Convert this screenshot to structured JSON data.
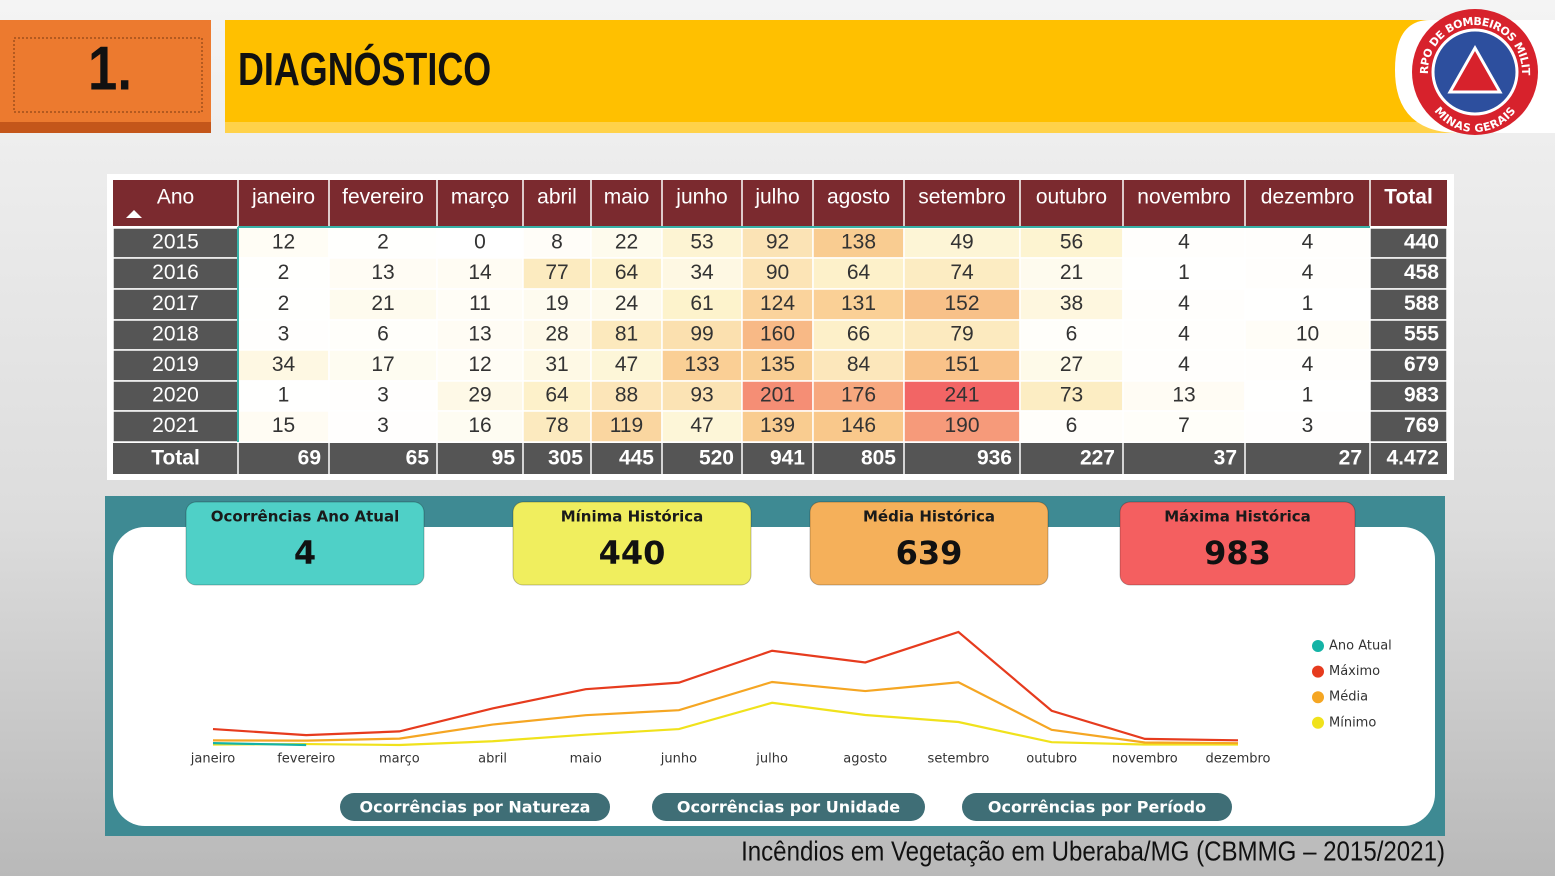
{
  "header": {
    "number": "1.",
    "title": "DIAGNÓSTICO"
  },
  "logo": {
    "ring_top": "CORPO DE BOMBEIROS MILITAR",
    "ring_bottom": "MINAS GERAIS"
  },
  "table": {
    "columns": [
      "Ano",
      "janeiro",
      "fevereiro",
      "março",
      "abril",
      "maio",
      "junho",
      "julho",
      "agosto",
      "setembro",
      "outubro",
      "novembro",
      "dezembro",
      "Total"
    ],
    "rows": [
      [
        "2015",
        12,
        2,
        0,
        8,
        22,
        53,
        92,
        138,
        49,
        56,
        4,
        4,
        440
      ],
      [
        "2016",
        2,
        13,
        14,
        77,
        64,
        34,
        90,
        64,
        74,
        21,
        1,
        4,
        458
      ],
      [
        "2017",
        2,
        21,
        11,
        19,
        24,
        61,
        124,
        131,
        152,
        38,
        4,
        1,
        588
      ],
      [
        "2018",
        3,
        6,
        13,
        28,
        81,
        99,
        160,
        66,
        79,
        6,
        4,
        10,
        555
      ],
      [
        "2019",
        34,
        17,
        12,
        31,
        47,
        133,
        135,
        84,
        151,
        27,
        4,
        4,
        679
      ],
      [
        "2020",
        1,
        3,
        29,
        64,
        88,
        93,
        201,
        176,
        241,
        73,
        13,
        1,
        983
      ],
      [
        "2021",
        15,
        3,
        16,
        78,
        119,
        47,
        139,
        146,
        190,
        6,
        7,
        3,
        769
      ]
    ],
    "total": [
      "Total",
      69,
      65,
      95,
      305,
      445,
      520,
      941,
      805,
      936,
      227,
      37,
      27,
      "4.472"
    ]
  },
  "kpis": [
    {
      "label": "Ocorrências Ano Atual",
      "value": 4,
      "color": "#4fd0c7"
    },
    {
      "label": "Mínima Histórica",
      "value": 440,
      "color": "#f0ee5e"
    },
    {
      "label": "Média Histórica",
      "value": 639,
      "color": "#f5b05a"
    },
    {
      "label": "Máxima Histórica",
      "value": 983,
      "color": "#f45f60"
    }
  ],
  "chart_data": {
    "type": "line",
    "categories": [
      "janeiro",
      "fevereiro",
      "março",
      "abril",
      "maio",
      "junho",
      "julho",
      "agosto",
      "setembro",
      "outubro",
      "novembro",
      "dezembro"
    ],
    "series": [
      {
        "name": "Ano Atual",
        "color": "#14b3a6",
        "values": [
          4,
          0,
          null,
          null,
          null,
          null,
          null,
          null,
          null,
          null,
          null,
          null
        ]
      },
      {
        "name": "Máximo",
        "color": "#e63b1e",
        "values": [
          34,
          21,
          29,
          78,
          119,
          133,
          201,
          176,
          241,
          73,
          13,
          10
        ]
      },
      {
        "name": "Média",
        "color": "#f5a623",
        "values": [
          9.9,
          9.3,
          13.6,
          43.6,
          63.6,
          74.3,
          134.4,
          115,
          133.7,
          32.4,
          5.3,
          3.9
        ]
      },
      {
        "name": "Mínimo",
        "color": "#f0e21c",
        "values": [
          1,
          2,
          0,
          8,
          22,
          34,
          90,
          64,
          49,
          6,
          1,
          1
        ]
      }
    ]
  },
  "buttons": [
    "Ocorrências por Natureza",
    "Ocorrências por Unidade",
    "Ocorrências por Período"
  ],
  "caption": "Incêndios em Vegetação em Uberaba/MG (CBMMG – 2015/2021)"
}
